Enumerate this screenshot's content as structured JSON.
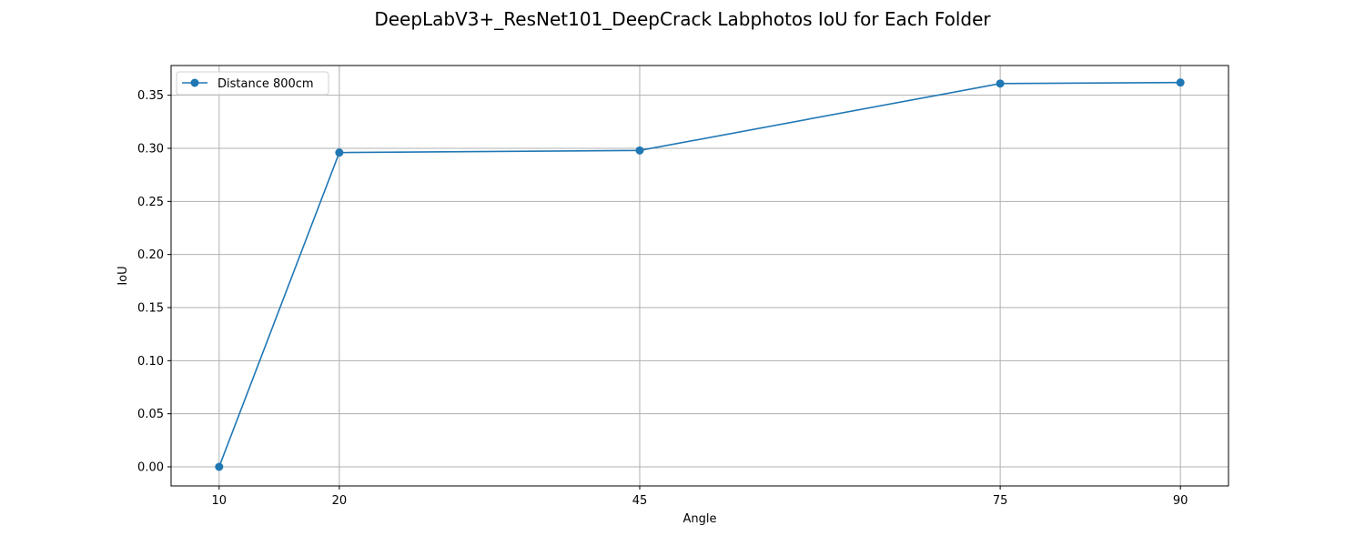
{
  "chart_data": {
    "type": "line",
    "title": "DeepLabV3+_ResNet101_DeepCrack Labphotos IoU for Each Folder",
    "xlabel": "Angle",
    "ylabel": "IoU",
    "x": [
      10,
      20,
      45,
      75,
      90
    ],
    "x_tick_labels": [
      "10",
      "20",
      "45",
      "75",
      "90"
    ],
    "y_ticks": [
      0.0,
      0.05,
      0.1,
      0.15,
      0.2,
      0.25,
      0.3,
      0.35
    ],
    "y_tick_labels": [
      "0.00",
      "0.05",
      "0.10",
      "0.15",
      "0.20",
      "0.25",
      "0.30",
      "0.35"
    ],
    "xlim": [
      6,
      94
    ],
    "ylim": [
      -0.018,
      0.378
    ],
    "grid": true,
    "legend_position": "upper-left",
    "series": [
      {
        "name": "Distance 800cm",
        "color": "#1f77b4",
        "marker": "circle",
        "values": [
          0.0,
          0.296,
          0.298,
          0.361,
          0.362
        ]
      }
    ]
  }
}
